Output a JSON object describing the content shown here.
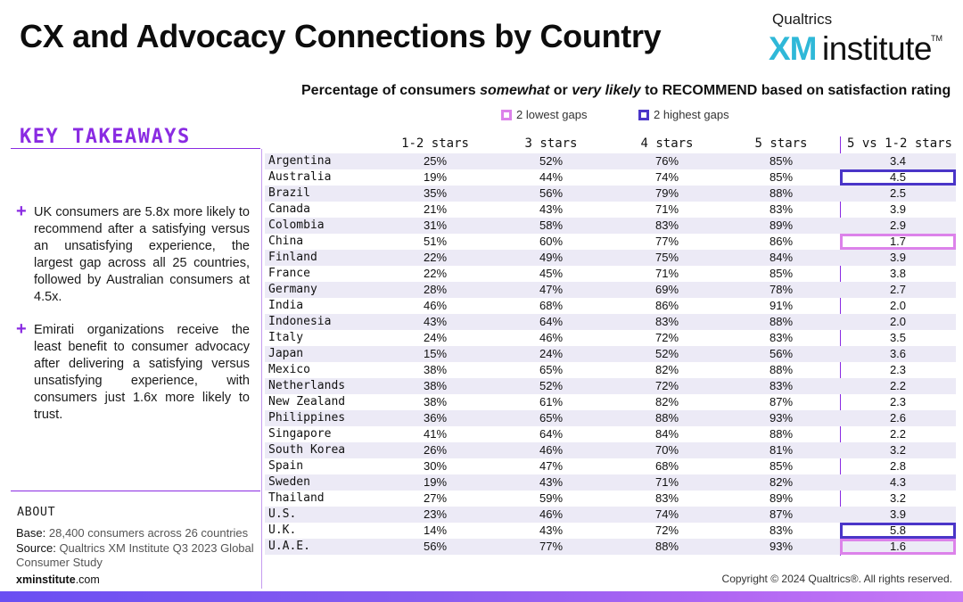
{
  "title": "CX and Advocacy Connections by Country",
  "logo": {
    "brand": "Qualtrics",
    "xm": "XM",
    "institute": "institute",
    "tm": "TM"
  },
  "subtitle": {
    "part1": "Percentage of consumers ",
    "em1": "somewhat",
    "part2": " or ",
    "em2": "very likely",
    "part3": " to RECOMMEND based on satisfaction rating"
  },
  "legend": {
    "low": "2 lowest gaps",
    "high": "2 highest gaps"
  },
  "colors": {
    "accent": "#8a2be2",
    "low_gap": "#dc82ea",
    "high_gap": "#4a35c8",
    "row_shade": "#eceaf6"
  },
  "takeaways": {
    "heading": "KEY TAKEAWAYS",
    "bullets": [
      "UK consumers are 5.8x more likely to recommend after a satisfying versus an unsatisfying experience, the largest gap across all 25 countries, followed by Australian consumers at 4.5x.",
      "Emirati organizations receive the least benefit to consumer advocacy after delivering a satisfying versus unsatisfying experience, with consumers just 1.6x more likely to trust."
    ]
  },
  "about": {
    "heading": "ABOUT",
    "base_label": "Base:",
    "base_value": "28,400 consumers across 26 countries",
    "source_label": "Source:",
    "source_value_1": "Qualtrics XM Institute Q3 2023 Global",
    "source_value_2": "Consumer Study",
    "site_bold": "xminstitute",
    "site_rest": ".com"
  },
  "copyright": "Copyright © 2024 Qualtrics®. All rights reserved.",
  "chart_data": {
    "type": "table",
    "columns": [
      "1-2 stars",
      "3 stars",
      "4 stars",
      "5 stars",
      "5 vs 1-2 stars"
    ],
    "rows": [
      {
        "country": "Argentina",
        "values": [
          "25%",
          "52%",
          "76%",
          "85%",
          "3.4"
        ],
        "highlight": ""
      },
      {
        "country": "Australia",
        "values": [
          "19%",
          "44%",
          "74%",
          "85%",
          "4.5"
        ],
        "highlight": "high"
      },
      {
        "country": "Brazil",
        "values": [
          "35%",
          "56%",
          "79%",
          "88%",
          "2.5"
        ],
        "highlight": ""
      },
      {
        "country": "Canada",
        "values": [
          "21%",
          "43%",
          "71%",
          "83%",
          "3.9"
        ],
        "highlight": ""
      },
      {
        "country": "Colombia",
        "values": [
          "31%",
          "58%",
          "83%",
          "89%",
          "2.9"
        ],
        "highlight": ""
      },
      {
        "country": "China",
        "values": [
          "51%",
          "60%",
          "77%",
          "86%",
          "1.7"
        ],
        "highlight": "low"
      },
      {
        "country": "Finland",
        "values": [
          "22%",
          "49%",
          "75%",
          "84%",
          "3.9"
        ],
        "highlight": ""
      },
      {
        "country": "France",
        "values": [
          "22%",
          "45%",
          "71%",
          "85%",
          "3.8"
        ],
        "highlight": ""
      },
      {
        "country": "Germany",
        "values": [
          "28%",
          "47%",
          "69%",
          "78%",
          "2.7"
        ],
        "highlight": ""
      },
      {
        "country": "India",
        "values": [
          "46%",
          "68%",
          "86%",
          "91%",
          "2.0"
        ],
        "highlight": ""
      },
      {
        "country": "Indonesia",
        "values": [
          "43%",
          "64%",
          "83%",
          "88%",
          "2.0"
        ],
        "highlight": ""
      },
      {
        "country": "Italy",
        "values": [
          "24%",
          "46%",
          "72%",
          "83%",
          "3.5"
        ],
        "highlight": ""
      },
      {
        "country": "Japan",
        "values": [
          "15%",
          "24%",
          "52%",
          "56%",
          "3.6"
        ],
        "highlight": ""
      },
      {
        "country": "Mexico",
        "values": [
          "38%",
          "65%",
          "82%",
          "88%",
          "2.3"
        ],
        "highlight": ""
      },
      {
        "country": "Netherlands",
        "values": [
          "38%",
          "52%",
          "72%",
          "83%",
          "2.2"
        ],
        "highlight": ""
      },
      {
        "country": "New Zealand",
        "values": [
          "38%",
          "61%",
          "82%",
          "87%",
          "2.3"
        ],
        "highlight": ""
      },
      {
        "country": "Philippines",
        "values": [
          "36%",
          "65%",
          "88%",
          "93%",
          "2.6"
        ],
        "highlight": ""
      },
      {
        "country": "Singapore",
        "values": [
          "41%",
          "64%",
          "84%",
          "88%",
          "2.2"
        ],
        "highlight": ""
      },
      {
        "country": "South Korea",
        "values": [
          "26%",
          "46%",
          "70%",
          "81%",
          "3.2"
        ],
        "highlight": ""
      },
      {
        "country": "Spain",
        "values": [
          "30%",
          "47%",
          "68%",
          "85%",
          "2.8"
        ],
        "highlight": ""
      },
      {
        "country": "Sweden",
        "values": [
          "19%",
          "43%",
          "71%",
          "82%",
          "4.3"
        ],
        "highlight": ""
      },
      {
        "country": "Thailand",
        "values": [
          "27%",
          "59%",
          "83%",
          "89%",
          "3.2"
        ],
        "highlight": ""
      },
      {
        "country": "U.S.",
        "values": [
          "23%",
          "46%",
          "74%",
          "87%",
          "3.9"
        ],
        "highlight": ""
      },
      {
        "country": "U.K.",
        "values": [
          "14%",
          "43%",
          "72%",
          "83%",
          "5.8"
        ],
        "highlight": "high"
      },
      {
        "country": "U.A.E.",
        "values": [
          "56%",
          "77%",
          "88%",
          "93%",
          "1.6"
        ],
        "highlight": "low"
      }
    ]
  }
}
